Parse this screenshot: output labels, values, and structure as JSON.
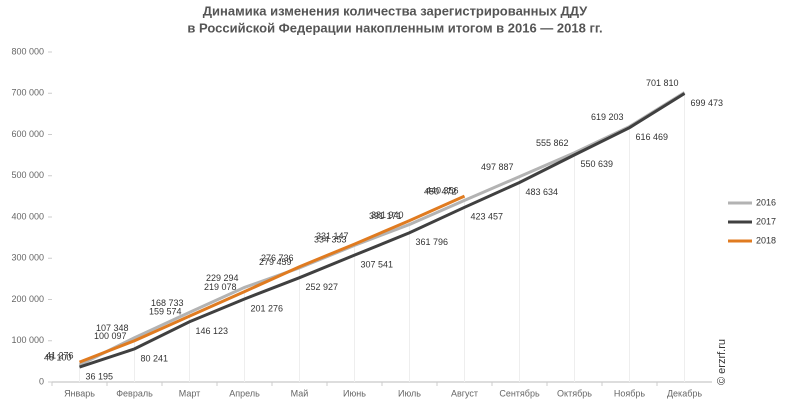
{
  "chart_data": {
    "type": "line",
    "title": "Динамика изменения количества зарегистрированных ДДУ",
    "subtitle": "в Российской Федерации накопленным итогом в 2016 — 2018 гг.",
    "categories": [
      "Январь",
      "Февраль",
      "Март",
      "Апрель",
      "Май",
      "Июнь",
      "Июль",
      "Август",
      "Сентябрь",
      "Октябрь",
      "Ноябрь",
      "Декабрь"
    ],
    "series": [
      {
        "name": "2016",
        "color": "#b3b3b3",
        "values": [
          41276,
          107348,
          168733,
          229294,
          276736,
          331147,
          381940,
          440356,
          497887,
          555862,
          619203,
          701810
        ],
        "value_labels": [
          "41 276",
          "107 348",
          "168 733",
          "229 294",
          "276 736",
          "331 147",
          "381 940",
          "440 356",
          "497 887",
          "555 862",
          "619 203",
          "701 810"
        ]
      },
      {
        "name": "2017",
        "color": "#404040",
        "values": [
          36195,
          80241,
          146123,
          201276,
          252927,
          307541,
          361796,
          423457,
          483634,
          550639,
          616469,
          699473
        ],
        "value_labels": [
          "36 195",
          "80 241",
          "146 123",
          "201 276",
          "252 927",
          "307 541",
          "361 796",
          "423 457",
          "483 634",
          "550 639",
          "616 469",
          "699 473"
        ]
      },
      {
        "name": "2018",
        "color": "#e07b20",
        "values": [
          48100,
          100097,
          159574,
          219078,
          279459,
          334353,
          391171,
          450472,
          null,
          null,
          null,
          null
        ],
        "value_labels": [
          "48 100",
          "100 097",
          "159 574",
          "219 078",
          "279 459",
          "334 353",
          "391 171",
          "450 472",
          null,
          null,
          null,
          null
        ]
      }
    ],
    "ylim": [
      0,
      800000
    ],
    "yticks": [
      0,
      {
        "value": 100000,
        "label": "100 000"
      },
      {
        "value": 200000,
        "label": "200 000"
      },
      {
        "value": 300000,
        "label": "300 000"
      },
      {
        "value": 400000,
        "label": "400 000"
      },
      {
        "value": 500000,
        "label": "500 000"
      },
      {
        "value": 600000,
        "label": "600 000"
      },
      {
        "value": 700000,
        "label": "700 000"
      },
      {
        "value": 800000,
        "label": "800 000"
      }
    ],
    "legend": "right",
    "watermark": "© erzrf.ru"
  }
}
